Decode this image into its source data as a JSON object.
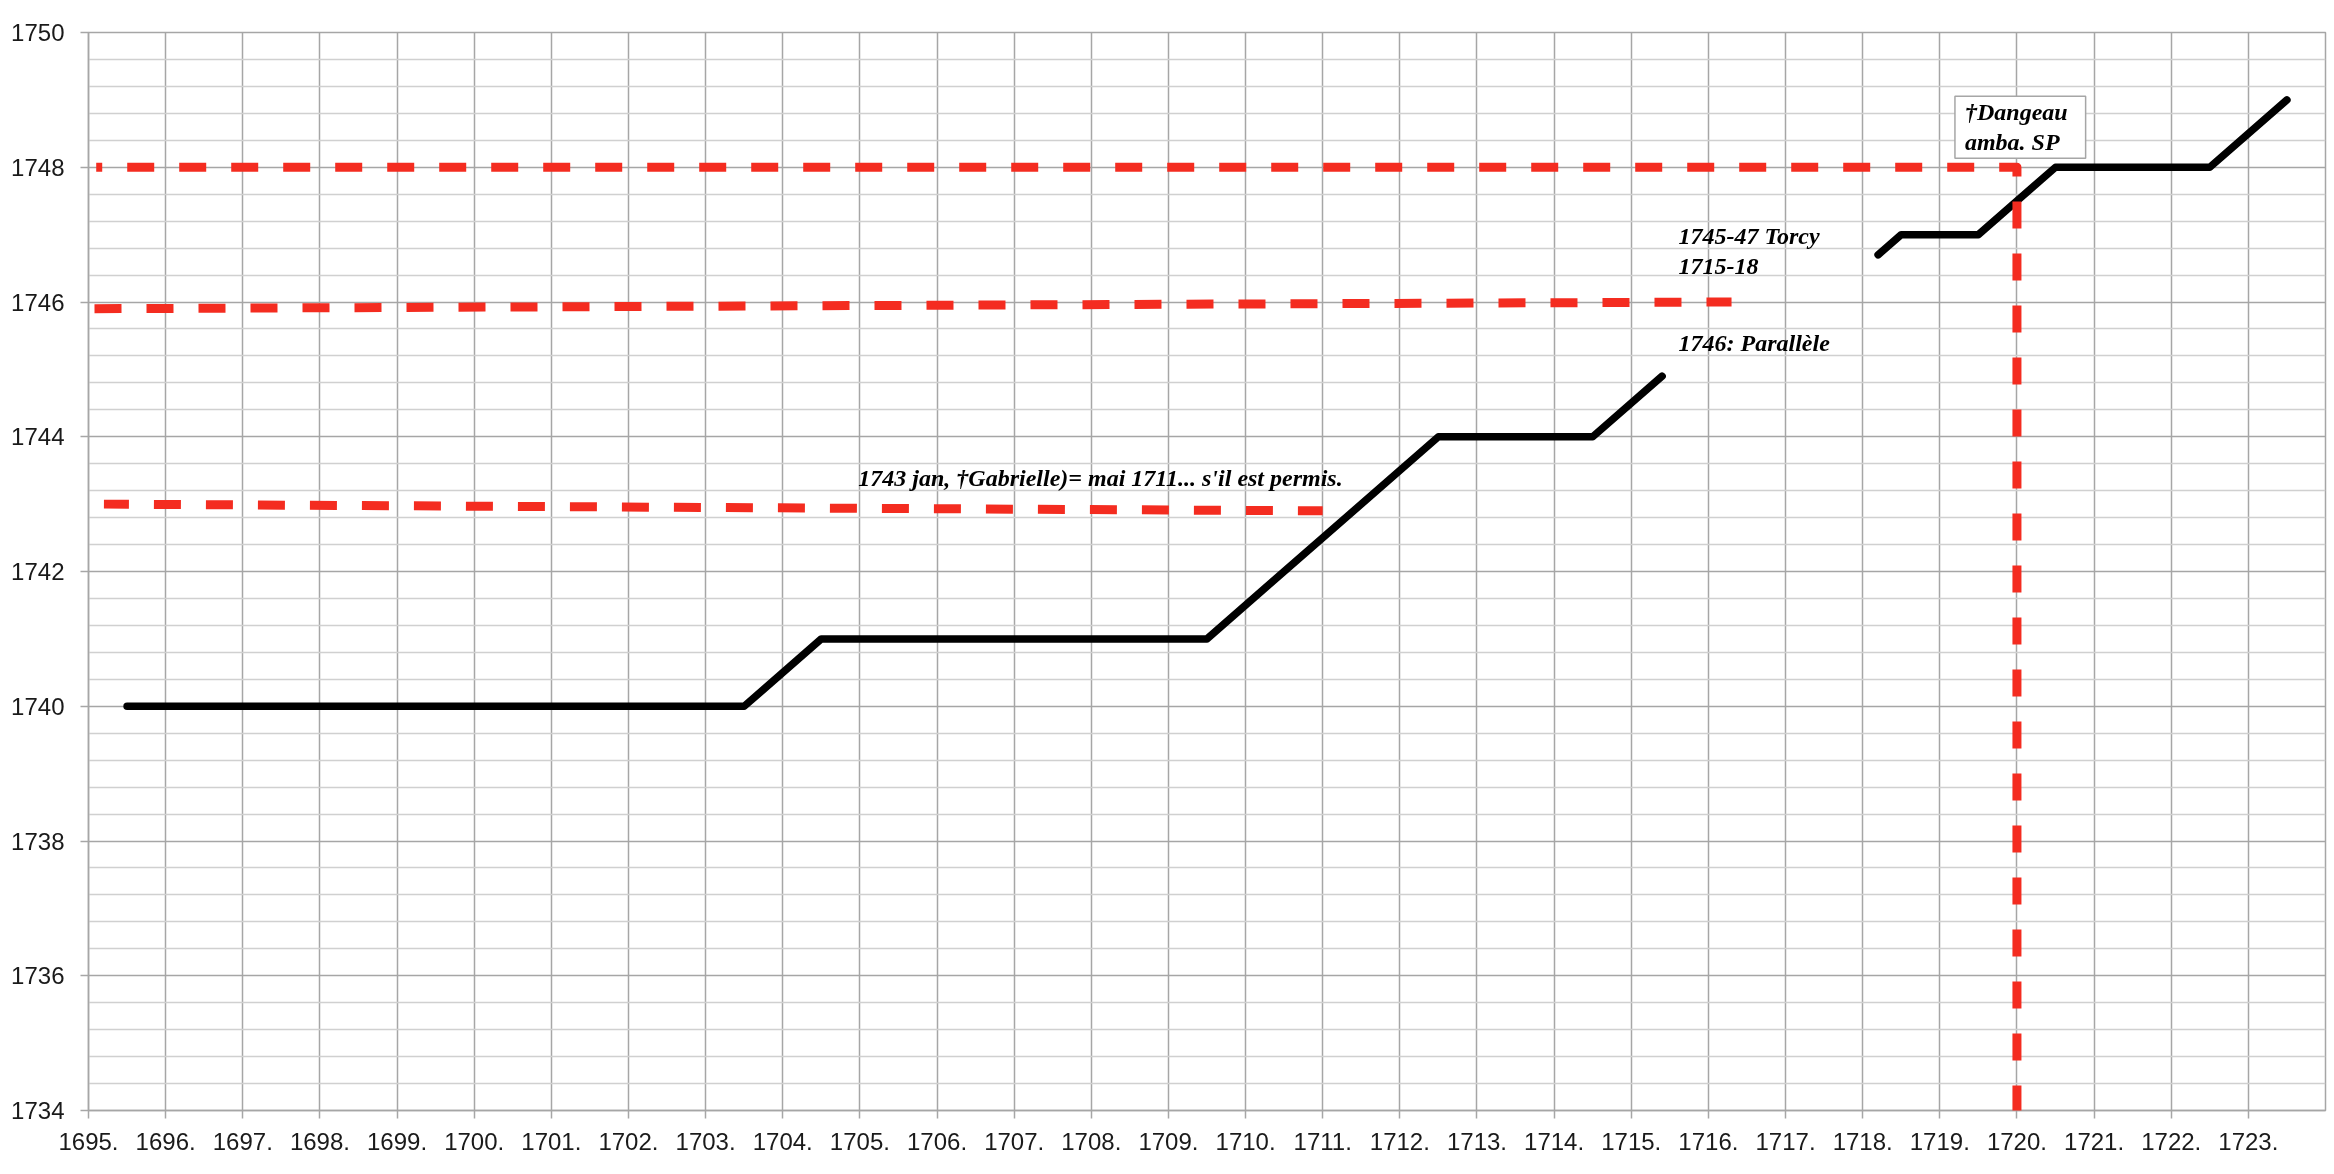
{
  "chart_data": {
    "type": "line",
    "xlim": [
      1695,
      1724
    ],
    "ylim": [
      1734,
      1750
    ],
    "xticks": [
      {
        "value": 1695,
        "label": "1695."
      },
      {
        "value": 1696,
        "label": "1696."
      },
      {
        "value": 1697,
        "label": "1697."
      },
      {
        "value": 1698,
        "label": "1698."
      },
      {
        "value": 1699,
        "label": "1699."
      },
      {
        "value": 1700,
        "label": "1700."
      },
      {
        "value": 1701,
        "label": "1701."
      },
      {
        "value": 1702,
        "label": "1702."
      },
      {
        "value": 1703,
        "label": "1703."
      },
      {
        "value": 1704,
        "label": "1704."
      },
      {
        "value": 1705,
        "label": "1705."
      },
      {
        "value": 1706,
        "label": "1706."
      },
      {
        "value": 1707,
        "label": "1707."
      },
      {
        "value": 1708,
        "label": "1708."
      },
      {
        "value": 1709,
        "label": "1709."
      },
      {
        "value": 1710,
        "label": "1710."
      },
      {
        "value": 1711,
        "label": "1711."
      },
      {
        "value": 1712,
        "label": "1712."
      },
      {
        "value": 1713,
        "label": "1713."
      },
      {
        "value": 1714,
        "label": "1714."
      },
      {
        "value": 1715,
        "label": "1715."
      },
      {
        "value": 1716,
        "label": "1716."
      },
      {
        "value": 1717,
        "label": "1717."
      },
      {
        "value": 1718,
        "label": "1718."
      },
      {
        "value": 1719,
        "label": "1719."
      },
      {
        "value": 1720,
        "label": "1720."
      },
      {
        "value": 1721,
        "label": "1721."
      },
      {
        "value": 1722,
        "label": "1722."
      },
      {
        "value": 1723,
        "label": "1723."
      }
    ],
    "yticks": [
      1734,
      1736,
      1738,
      1740,
      1742,
      1744,
      1746,
      1748,
      1750
    ],
    "grid": true,
    "line_style": "solid",
    "series": [
      {
        "color": "#000000",
        "x": [
          1695.5,
          1703.5,
          1704.5,
          1709.5,
          1712.5,
          1714.5,
          1715.4,
          1716.8,
          1718.2,
          1718.5,
          1719.5,
          1720.5,
          1722.5,
          1723.5
        ],
        "values": [
          1740,
          1740,
          1741,
          1741,
          1744,
          1744,
          1744.9,
          null,
          1746.7,
          1747,
          1747,
          1748,
          1748,
          1749
        ]
      },
      {
        "color": "#f42c20",
        "line_style": "dashed",
        "x": [
          1695.1,
          1720.0,
          1720.0
        ],
        "values": [
          1748.0,
          1748.0,
          1734.0
        ]
      },
      {
        "color": "#f42c20",
        "line_style": "dashed",
        "x": [
          1695.0,
          1716.3
        ],
        "values": [
          1745.9,
          1746.0
        ]
      },
      {
        "color": "#f42c20",
        "line_style": "dashed",
        "x": [
          1695.2,
          1711.0
        ],
        "values": [
          1743.0,
          1742.9
        ]
      }
    ],
    "annotations": [
      {
        "text": "1743 jan, †Gabrielle)= mai 1711... s'il est permis.",
        "x": 1711.0,
        "y": 1742.9
      },
      {
        "text": "1745-47 Torcy\n1715-18",
        "x": 1716.3,
        "y": 1746.0
      },
      {
        "text": "1746: Parallèle",
        "x": 1716.3,
        "y": 1746.0
      },
      {
        "text": "†Dangeau\namba. SP",
        "x": 1720.0,
        "y": 1748.0
      }
    ]
  }
}
